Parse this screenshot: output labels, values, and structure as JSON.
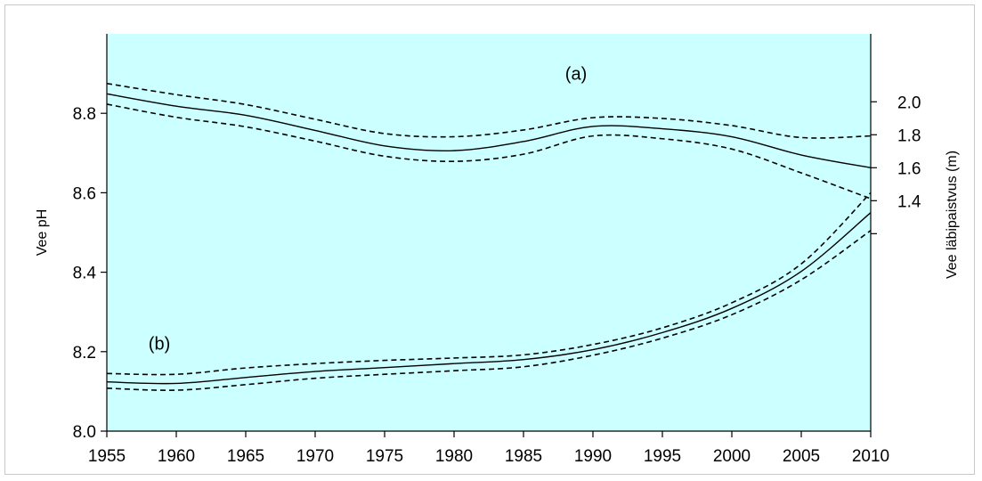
{
  "chart_data": {
    "type": "line",
    "title": "",
    "plot_background": "#ccffff",
    "xlabel": "",
    "xlim": [
      1955,
      2010
    ],
    "xticks": [
      1955,
      1960,
      1965,
      1970,
      1975,
      1980,
      1985,
      1990,
      1995,
      2000,
      2005,
      2010
    ],
    "y_left": {
      "label": "Vee pH",
      "ylim": [
        8.0,
        9.0
      ],
      "ticks": [
        8.0,
        8.2,
        8.4,
        8.6,
        8.8
      ],
      "tick_labels": [
        "8.0",
        "8.2",
        "8.4",
        "8.6",
        "8.8"
      ]
    },
    "y_right": {
      "label": "Vee läbipaistvus (m)",
      "ticks": [
        1.2,
        1.4,
        1.6,
        1.8,
        2.0
      ],
      "tick_labels": [
        "",
        "1.4",
        "1.6",
        "1.8",
        "2.0"
      ],
      "mapping_left_units": [
        8.497,
        8.58,
        8.663,
        8.746,
        8.829
      ]
    },
    "annotations": [
      {
        "text": "(a)",
        "x": 1988,
        "y": 8.885
      },
      {
        "text": "(b)",
        "x": 1958,
        "y": 8.205
      }
    ],
    "grid": false,
    "legend": "none",
    "series": [
      {
        "style": "solid",
        "x": [
          1955,
          1960,
          1965,
          1970,
          1975,
          1980,
          1985,
          1990,
          1995,
          2000,
          2005,
          2010
        ],
        "values": [
          8.849,
          8.818,
          8.795,
          8.757,
          8.718,
          8.706,
          8.729,
          8.767,
          8.761,
          8.741,
          8.695,
          8.663
        ]
      },
      {
        "style": "dashed",
        "x": [
          1955,
          1960,
          1965,
          1970,
          1975,
          1980,
          1985,
          1990,
          1995,
          2000,
          2005,
          2010
        ],
        "values": [
          8.875,
          8.847,
          8.822,
          8.785,
          8.749,
          8.741,
          8.758,
          8.789,
          8.787,
          8.769,
          8.739,
          8.743
        ]
      },
      {
        "style": "dashed",
        "x": [
          1955,
          1960,
          1965,
          1970,
          1975,
          1980,
          1985,
          1990,
          1995,
          2000,
          2005,
          2010
        ],
        "values": [
          8.823,
          8.79,
          8.766,
          8.73,
          8.692,
          8.679,
          8.697,
          8.743,
          8.736,
          8.71,
          8.65,
          8.585
        ]
      },
      {
        "style": "solid",
        "x": [
          1955,
          1960,
          1965,
          1970,
          1975,
          1980,
          1985,
          1990,
          1995,
          2000,
          2005,
          2010
        ],
        "values": [
          8.124,
          8.12,
          8.135,
          8.15,
          8.16,
          8.17,
          8.18,
          8.205,
          8.248,
          8.309,
          8.402,
          8.55
        ]
      },
      {
        "style": "dashed",
        "x": [
          1955,
          1960,
          1965,
          1970,
          1975,
          1980,
          1985,
          1990,
          1995,
          2000,
          2005,
          2010
        ],
        "values": [
          8.145,
          8.143,
          8.159,
          8.17,
          8.178,
          8.184,
          8.192,
          8.218,
          8.26,
          8.323,
          8.421,
          8.6
        ]
      },
      {
        "style": "dashed",
        "x": [
          1955,
          1960,
          1965,
          1970,
          1975,
          1980,
          1985,
          1990,
          1995,
          2000,
          2005,
          2010
        ],
        "values": [
          8.108,
          8.103,
          8.117,
          8.133,
          8.143,
          8.152,
          8.162,
          8.191,
          8.234,
          8.293,
          8.381,
          8.505
        ]
      }
    ]
  }
}
